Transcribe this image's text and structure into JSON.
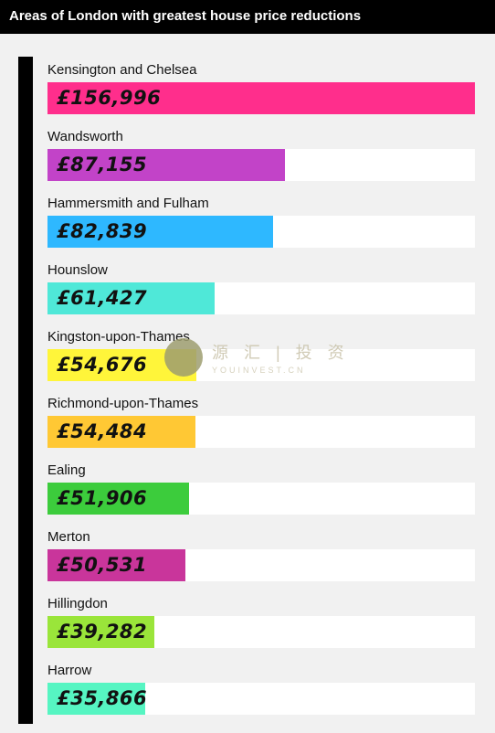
{
  "title": "Areas of London with greatest house price reductions",
  "watermark": {
    "text": "源 汇 | 投 资",
    "sub": "YOUINVEST.CN"
  },
  "chart_data": {
    "type": "bar",
    "title": "Areas of London with greatest house price reductions",
    "orientation": "horizontal",
    "categories": [
      "Kensington and Chelsea",
      "Wandsworth",
      "Hammersmith and Fulham",
      "Hounslow",
      "Kingston-upon-Thames",
      "Richmond-upon-Thames",
      "Ealing",
      "Merton",
      "Hillingdon",
      "Harrow"
    ],
    "values": [
      156996,
      87155,
      82839,
      61427,
      54676,
      54484,
      51906,
      50531,
      39282,
      35866
    ],
    "value_labels": [
      "£156,996",
      "£87,155",
      "£82,839",
      "£61,427",
      "£54,676",
      "£54,484",
      "£51,906",
      "£50,531",
      "£39,282",
      "£35,866"
    ],
    "colors": [
      "#ff2e8c",
      "#c243c8",
      "#2eb8ff",
      "#4fe8d8",
      "#fff53a",
      "#ffc834",
      "#3ccc3c",
      "#c9359b",
      "#9ae53a",
      "#56f5c2"
    ],
    "xlim": [
      0,
      156996
    ],
    "xlabel": "",
    "ylabel": "",
    "grid": false
  }
}
